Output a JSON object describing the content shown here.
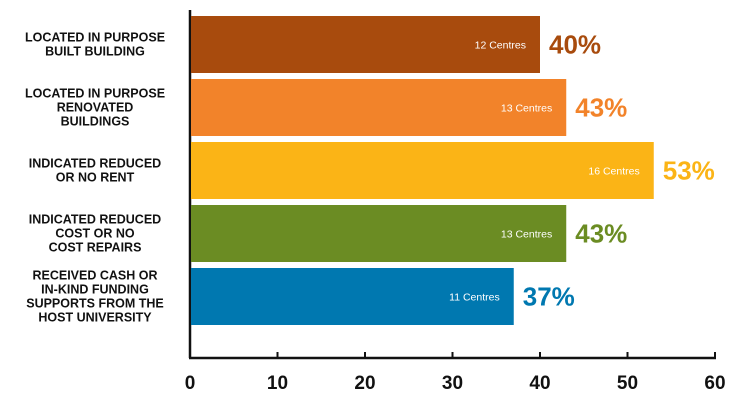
{
  "chart_data": {
    "type": "bar",
    "orientation": "horizontal",
    "categories": [
      [
        "LOCATED IN PURPOSE",
        "BUILT BUILDING"
      ],
      [
        "LOCATED IN PURPOSE",
        "RENOVATED",
        "BUILDINGS"
      ],
      [
        "INDICATED REDUCED",
        "OR NO RENT"
      ],
      [
        "INDICATED REDUCED",
        "COST OR NO",
        "COST REPAIRS"
      ],
      [
        "RECEIVED CASH OR",
        "IN-KIND FUNDING",
        "SUPPORTS FROM THE",
        "HOST UNIVERSITY"
      ]
    ],
    "values": [
      40,
      43,
      53,
      43,
      37
    ],
    "bar_labels": [
      "12 Centres",
      "13 Centres",
      "16 Centres",
      "13 Centres",
      "11 Centres"
    ],
    "percent_labels": [
      "40%",
      "43%",
      "53%",
      "43%",
      "37%"
    ],
    "colors": [
      "#a84b0d",
      "#f2832a",
      "#fbb416",
      "#6b8c23",
      "#0078b0"
    ],
    "xlim": [
      0,
      60
    ],
    "xticks": [
      "0",
      "10",
      "20",
      "30",
      "40",
      "50",
      "60"
    ],
    "grid": false,
    "title": "",
    "xlabel": "",
    "ylabel": ""
  }
}
